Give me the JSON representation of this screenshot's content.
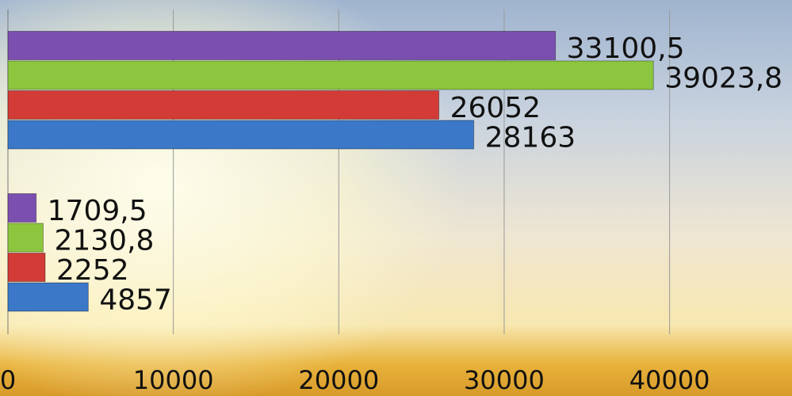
{
  "chart_data": {
    "type": "bar",
    "orientation": "horizontal",
    "categories": [
      null,
      null
    ],
    "series": [
      {
        "color": "#7a4fb0",
        "values": [
          33100.5,
          1709.5
        ],
        "value_labels": [
          "33100,5",
          "1709,5"
        ]
      },
      {
        "color": "#8cc63e",
        "values": [
          39023.8,
          2130.8
        ],
        "value_labels": [
          "39023,8",
          "2130,8"
        ]
      },
      {
        "color": "#d23b36",
        "values": [
          26052,
          2252
        ],
        "value_labels": [
          "26052",
          "2252"
        ]
      },
      {
        "color": "#3b78c8",
        "values": [
          28163,
          4857
        ],
        "value_labels": [
          "28163",
          "4857"
        ]
      }
    ],
    "xlim": [
      0,
      47400
    ],
    "xticks": [
      0,
      10000,
      20000,
      30000,
      40000
    ],
    "grid": true
  }
}
